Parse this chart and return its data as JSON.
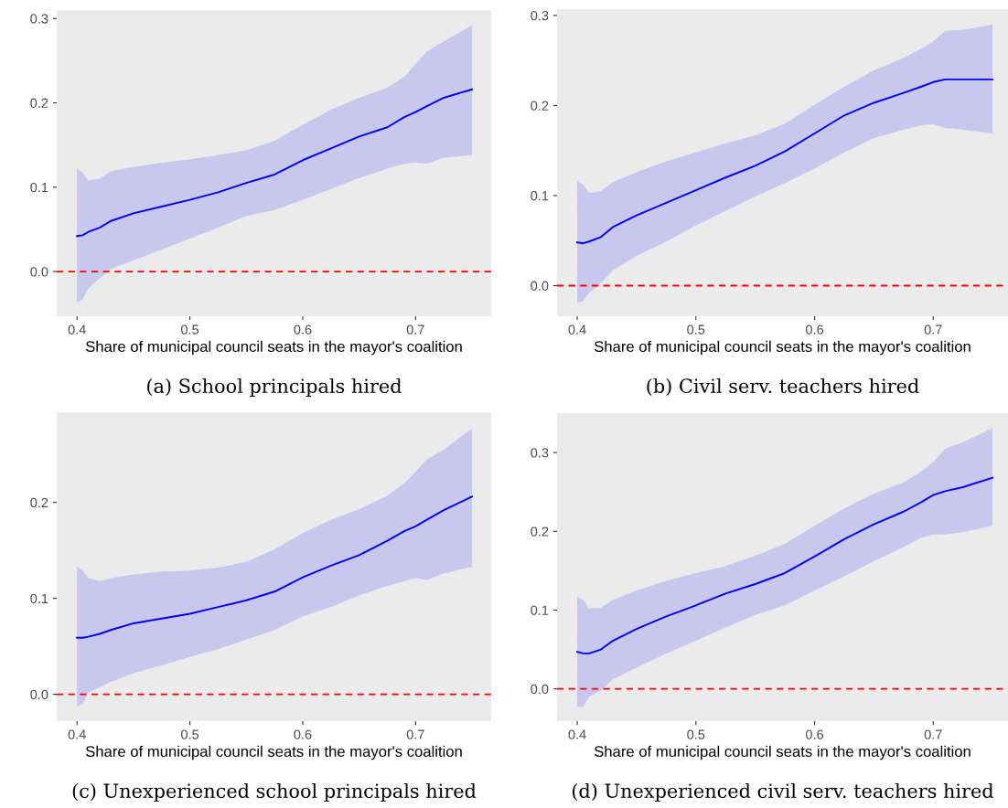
{
  "chart_data": [
    {
      "type": "line",
      "title": "(a) School principals hired",
      "xlabel": "Share of municipal council seats in the mayor's coalition",
      "x": [
        0.4,
        0.405,
        0.41,
        0.42,
        0.43,
        0.45,
        0.475,
        0.5,
        0.525,
        0.55,
        0.575,
        0.6,
        0.625,
        0.65,
        0.675,
        0.69,
        0.7,
        0.71,
        0.725,
        0.75
      ],
      "series": [
        {
          "color": "#0000ff",
          "values": [
            0.042,
            0.043,
            0.047,
            0.052,
            0.06,
            0.069,
            0.077,
            0.085,
            0.094,
            0.105,
            0.115,
            0.132,
            0.146,
            0.16,
            0.171,
            0.183,
            0.189,
            0.196,
            0.206,
            0.216
          ],
          "lower": [
            -0.037,
            -0.033,
            -0.02,
            -0.008,
            0.003,
            0.013,
            0.026,
            0.039,
            0.052,
            0.066,
            0.073,
            0.085,
            0.098,
            0.111,
            0.122,
            0.128,
            0.129,
            0.128,
            0.135,
            0.138
          ],
          "upper": [
            0.122,
            0.117,
            0.108,
            0.11,
            0.119,
            0.124,
            0.129,
            0.133,
            0.138,
            0.144,
            0.155,
            0.174,
            0.192,
            0.206,
            0.218,
            0.231,
            0.246,
            0.261,
            0.273,
            0.292
          ]
        }
      ],
      "xlim": [
        0.382,
        0.767
      ],
      "ylim": [
        -0.053,
        0.31
      ],
      "xticks": [
        {
          "value": 0.4,
          "label": "0.4"
        },
        {
          "value": 0.5,
          "label": "0.5"
        },
        {
          "value": 0.6,
          "label": "0.6"
        },
        {
          "value": 0.7,
          "label": "0.7"
        }
      ],
      "yticks": [
        {
          "value": 0,
          "label": "0.0"
        },
        {
          "value": 0.1,
          "label": "0.1"
        },
        {
          "value": 0.2,
          "label": "0.2"
        },
        {
          "value": 0.3,
          "label": "0.3"
        }
      ],
      "ref_lines": [
        {
          "axis": "y",
          "value": 0,
          "color": "#ff0000",
          "line_style": "dashed"
        }
      ],
      "grid": false
    },
    {
      "type": "line",
      "title": "(b) Civil serv. teachers hired",
      "xlabel": "Share of municipal council seats in the mayor's coalition",
      "x": [
        0.4,
        0.405,
        0.41,
        0.42,
        0.43,
        0.45,
        0.475,
        0.5,
        0.525,
        0.55,
        0.575,
        0.6,
        0.625,
        0.65,
        0.675,
        0.69,
        0.7,
        0.71,
        0.725,
        0.75
      ],
      "series": [
        {
          "color": "#0000ff",
          "values": [
            0.048,
            0.047,
            0.049,
            0.054,
            0.065,
            0.078,
            0.092,
            0.106,
            0.12,
            0.133,
            0.149,
            0.169,
            0.189,
            0.203,
            0.214,
            0.221,
            0.226,
            0.229,
            0.229,
            0.229
          ],
          "lower": [
            -0.019,
            -0.017,
            -0.008,
            0.003,
            0.017,
            0.033,
            0.049,
            0.067,
            0.083,
            0.099,
            0.114,
            0.13,
            0.148,
            0.164,
            0.173,
            0.178,
            0.179,
            0.175,
            0.173,
            0.169
          ],
          "upper": [
            0.116,
            0.112,
            0.103,
            0.105,
            0.115,
            0.126,
            0.138,
            0.148,
            0.158,
            0.167,
            0.18,
            0.201,
            0.221,
            0.239,
            0.253,
            0.263,
            0.271,
            0.283,
            0.284,
            0.29
          ]
        }
      ],
      "xlim": [
        0.383,
        0.763
      ],
      "ylim": [
        -0.034,
        0.307
      ],
      "xticks": [
        {
          "value": 0.4,
          "label": "0.4"
        },
        {
          "value": 0.5,
          "label": "0.5"
        },
        {
          "value": 0.6,
          "label": "0.6"
        },
        {
          "value": 0.7,
          "label": "0.7"
        }
      ],
      "yticks": [
        {
          "value": 0,
          "label": "0.0"
        },
        {
          "value": 0.1,
          "label": "0.1"
        },
        {
          "value": 0.2,
          "label": "0.2"
        },
        {
          "value": 0.3,
          "label": "0.3"
        }
      ],
      "ref_lines": [
        {
          "axis": "y",
          "value": 0,
          "color": "#ff0000",
          "line_style": "dashed"
        }
      ],
      "grid": false
    },
    {
      "type": "line",
      "title": "(c) Unexperienced school principals hired",
      "xlabel": "Share of municipal council seats in the mayor's coalition",
      "x": [
        0.4,
        0.405,
        0.41,
        0.42,
        0.43,
        0.45,
        0.475,
        0.5,
        0.525,
        0.55,
        0.575,
        0.6,
        0.625,
        0.65,
        0.675,
        0.69,
        0.7,
        0.71,
        0.725,
        0.75
      ],
      "series": [
        {
          "color": "#0000ff",
          "values": [
            0.059,
            0.059,
            0.06,
            0.063,
            0.067,
            0.074,
            0.079,
            0.084,
            0.091,
            0.098,
            0.107,
            0.122,
            0.134,
            0.145,
            0.16,
            0.17,
            0.175,
            0.182,
            0.192,
            0.206
          ],
          "lower": [
            -0.013,
            -0.01,
            0.002,
            0.007,
            0.013,
            0.022,
            0.03,
            0.039,
            0.047,
            0.057,
            0.067,
            0.081,
            0.091,
            0.103,
            0.113,
            0.118,
            0.121,
            0.119,
            0.126,
            0.133
          ],
          "upper": [
            0.133,
            0.129,
            0.121,
            0.118,
            0.121,
            0.125,
            0.128,
            0.129,
            0.132,
            0.138,
            0.151,
            0.168,
            0.182,
            0.193,
            0.207,
            0.22,
            0.232,
            0.245,
            0.255,
            0.277
          ]
        }
      ],
      "xlim": [
        0.382,
        0.767
      ],
      "ylim": [
        -0.028,
        0.294
      ],
      "xticks": [
        {
          "value": 0.4,
          "label": "0.4"
        },
        {
          "value": 0.5,
          "label": "0.5"
        },
        {
          "value": 0.6,
          "label": "0.6"
        },
        {
          "value": 0.7,
          "label": "0.7"
        }
      ],
      "yticks": [
        {
          "value": 0,
          "label": "0.0"
        },
        {
          "value": 0.1,
          "label": "0.1"
        },
        {
          "value": 0.2,
          "label": "0.2"
        }
      ],
      "ref_lines": [
        {
          "axis": "y",
          "value": 0,
          "color": "#ff0000",
          "line_style": "dashed"
        }
      ],
      "grid": false
    },
    {
      "type": "line",
      "title": "(d) Unexperienced civil serv. teachers hired",
      "xlabel": "Share of municipal council seats in the mayor's coalition",
      "x": [
        0.4,
        0.405,
        0.41,
        0.42,
        0.43,
        0.45,
        0.475,
        0.5,
        0.525,
        0.55,
        0.575,
        0.6,
        0.625,
        0.65,
        0.675,
        0.69,
        0.7,
        0.71,
        0.725,
        0.75
      ],
      "series": [
        {
          "color": "#0000ff",
          "values": [
            0.047,
            0.045,
            0.045,
            0.05,
            0.061,
            0.076,
            0.092,
            0.106,
            0.121,
            0.133,
            0.147,
            0.168,
            0.19,
            0.209,
            0.225,
            0.237,
            0.246,
            0.251,
            0.256,
            0.268
          ],
          "lower": [
            -0.023,
            -0.023,
            -0.01,
            -0.002,
            0.012,
            0.027,
            0.045,
            0.061,
            0.078,
            0.094,
            0.106,
            0.125,
            0.143,
            0.162,
            0.18,
            0.192,
            0.196,
            0.196,
            0.199,
            0.207
          ],
          "upper": [
            0.117,
            0.113,
            0.102,
            0.103,
            0.113,
            0.125,
            0.137,
            0.147,
            0.156,
            0.169,
            0.184,
            0.207,
            0.229,
            0.248,
            0.262,
            0.276,
            0.288,
            0.305,
            0.313,
            0.331
          ]
        }
      ],
      "xlim": [
        0.383,
        0.763
      ],
      "ylim": [
        -0.041,
        0.35
      ],
      "xticks": [
        {
          "value": 0.4,
          "label": "0.4"
        },
        {
          "value": 0.5,
          "label": "0.5"
        },
        {
          "value": 0.6,
          "label": "0.6"
        },
        {
          "value": 0.7,
          "label": "0.7"
        }
      ],
      "yticks": [
        {
          "value": 0,
          "label": "0.0"
        },
        {
          "value": 0.1,
          "label": "0.1"
        },
        {
          "value": 0.2,
          "label": "0.2"
        },
        {
          "value": 0.3,
          "label": "0.3"
        }
      ],
      "ref_lines": [
        {
          "axis": "y",
          "value": 0,
          "color": "#ff0000",
          "line_style": "dashed"
        }
      ],
      "grid": false
    }
  ]
}
